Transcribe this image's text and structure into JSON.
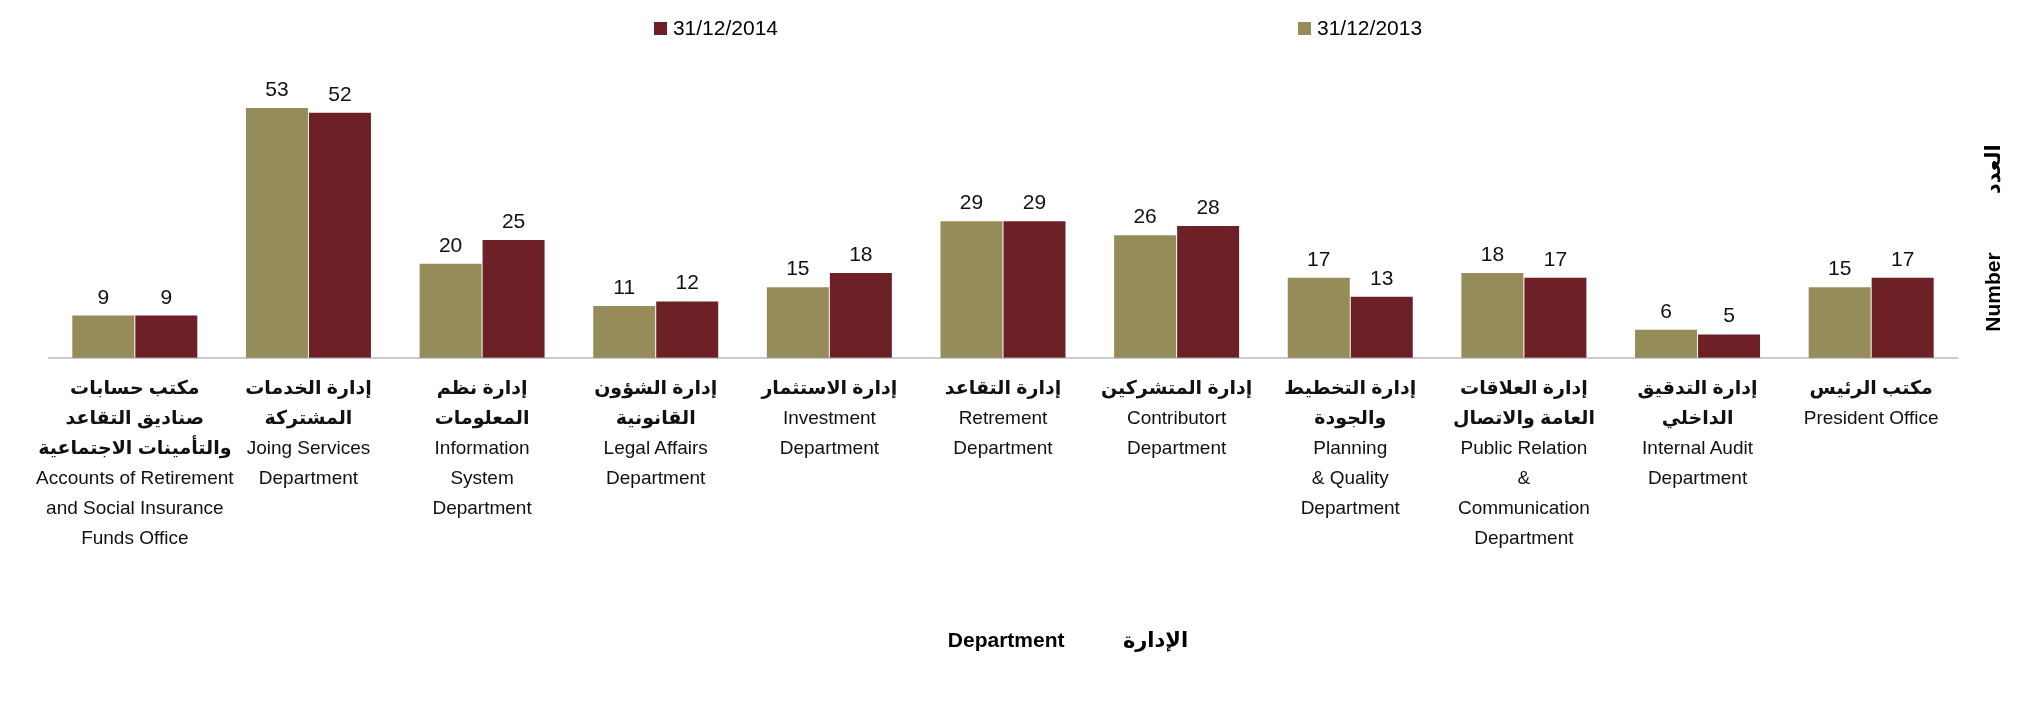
{
  "chart_data": {
    "type": "bar",
    "xlabel": "Department          الإدارة",
    "ylabel": "Number          العدد",
    "categories": [
      "مكتب حسابات\nصناديق التقاعد\nوالتأمينات الاجتماعية\nAccounts of Retirement\nand Social Insurance\nFunds Office",
      "إدارة الخدمات\nالمشتركة\nJoing Services\nDepartment",
      "إدارة نظم\nالمعلومات\nInformation\nSystem\nDepartment",
      "إدارة الشؤون\nالقانونية\nLegal Affairs\nDepartment",
      "إدارة الاستثمار\nInvestment\nDepartment",
      "إدارة التقاعد\nRetrement\nDepartment",
      "إدارة المتشركين\nContributort\nDepartment",
      "إدارة التخطيط\nوالجودة\nPlanning\n& Quality\nDepartment",
      "إدارة العلاقات\nالعامة والاتصال\nPublic Relation\n&\nCommunication\nDepartment",
      "إدارة التدقيق\nالداخلي\nInternal Audit\nDepartment",
      "مكتب الرئيس\nPresident Office"
    ],
    "series": [
      {
        "name": "31/12/2013",
        "color": "#968c5a",
        "values": [
          9,
          53,
          20,
          11,
          15,
          29,
          26,
          17,
          18,
          6,
          15
        ]
      },
      {
        "name": "31/12/2014",
        "color": "#6e2027",
        "values": [
          9,
          52,
          25,
          12,
          18,
          29,
          28,
          13,
          17,
          5,
          17
        ]
      }
    ],
    "data_labels": true,
    "legend": "top",
    "grid": false
  }
}
